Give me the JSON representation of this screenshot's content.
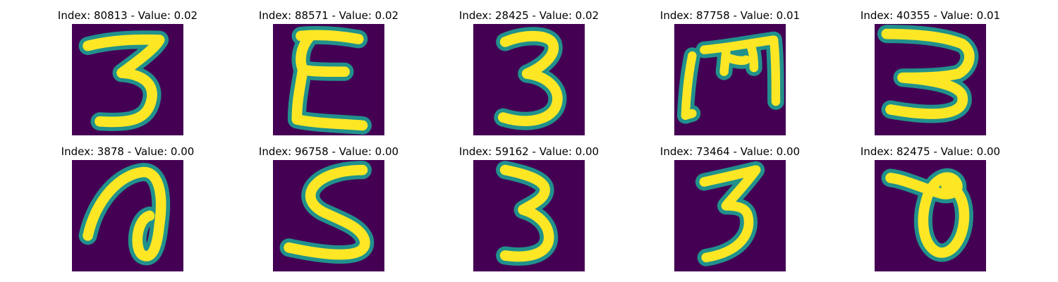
{
  "colors": {
    "background": "#440154",
    "stroke_mid": "#21918c",
    "stroke_edge": "#3b528b",
    "stroke_core": "#fde725",
    "stroke_glow": "#5ec962"
  },
  "panels": [
    {
      "title": "Index: 80813 - Value: 0.02"
    },
    {
      "title": "Index: 88571 - Value: 0.02"
    },
    {
      "title": "Index: 28425 - Value: 0.02"
    },
    {
      "title": "Index: 87758 - Value: 0.01"
    },
    {
      "title": "Index: 40355 - Value: 0.01"
    },
    {
      "title": "Index: 3878 - Value: 0.00"
    },
    {
      "title": "Index: 96758 - Value: 0.00"
    },
    {
      "title": "Index: 59162 - Value: 0.00"
    },
    {
      "title": "Index: 73464 - Value: 0.00"
    },
    {
      "title": "Index: 82475 - Value: 0.00"
    }
  ]
}
